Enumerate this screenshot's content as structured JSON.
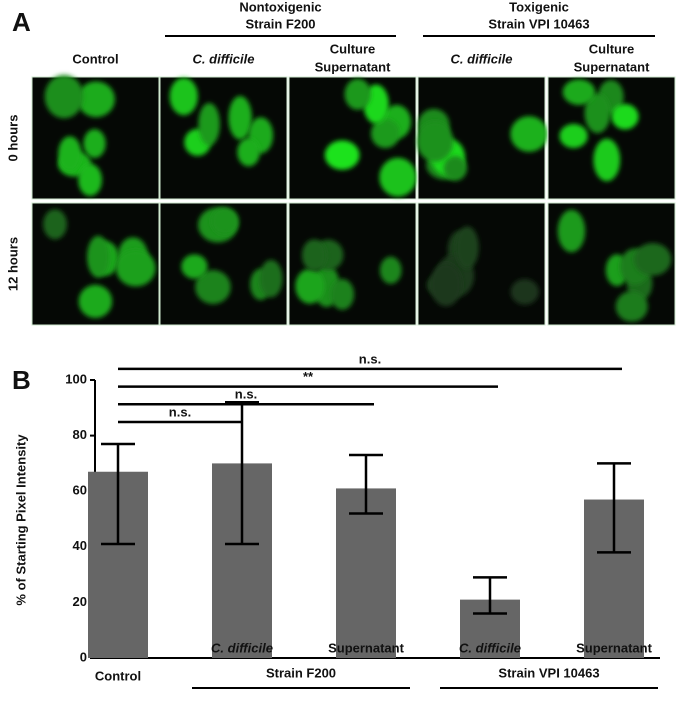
{
  "panel_a": {
    "label": "A",
    "groups": [
      {
        "title": [
          "Nontoxigenic",
          "Strain F200"
        ],
        "from": 1,
        "to": 2
      },
      {
        "title": [
          "Toxigenic",
          "Strain VPI 10463"
        ],
        "from": 3,
        "to": 4
      }
    ],
    "columns": [
      [
        "Control"
      ],
      [
        "C. difficile"
      ],
      [
        "Culture",
        "Supernatant"
      ],
      [
        "C. difficile"
      ],
      [
        "Culture",
        "Supernatant"
      ]
    ],
    "italic_columns": [
      false,
      true,
      false,
      true,
      false
    ],
    "rows": [
      "0 hours",
      "12 hours"
    ]
  },
  "panel_b_label": "B",
  "chart_data": {
    "type": "bar",
    "categories": [
      "Control",
      "C. difficile",
      "Supernatant",
      "C. difficile",
      "Supernatant"
    ],
    "italic_categories": [
      false,
      true,
      false,
      true,
      false
    ],
    "values": [
      67,
      70,
      61,
      21,
      57
    ],
    "error_low": [
      41,
      41,
      52,
      16,
      38
    ],
    "error_high": [
      77,
      92,
      73,
      29,
      70
    ],
    "color": "#666666",
    "ylabel": "% of  Starting Pixel Intensity",
    "ylim": [
      0,
      100
    ],
    "yticks": [
      0,
      20,
      40,
      60,
      80,
      100
    ],
    "groups": [
      {
        "label": "Strain F200",
        "from": 1,
        "to": 2
      },
      {
        "label": "Strain VPI 10463",
        "from": 3,
        "to": 4
      }
    ],
    "comparisons": [
      {
        "label": "n.s.",
        "from": 0,
        "to": 1
      },
      {
        "label": "n.s.",
        "from": 0,
        "to": 2
      },
      {
        "label": "**",
        "from": 0,
        "to": 3
      },
      {
        "label": "n.s.",
        "from": 0,
        "to": 4
      }
    ]
  }
}
